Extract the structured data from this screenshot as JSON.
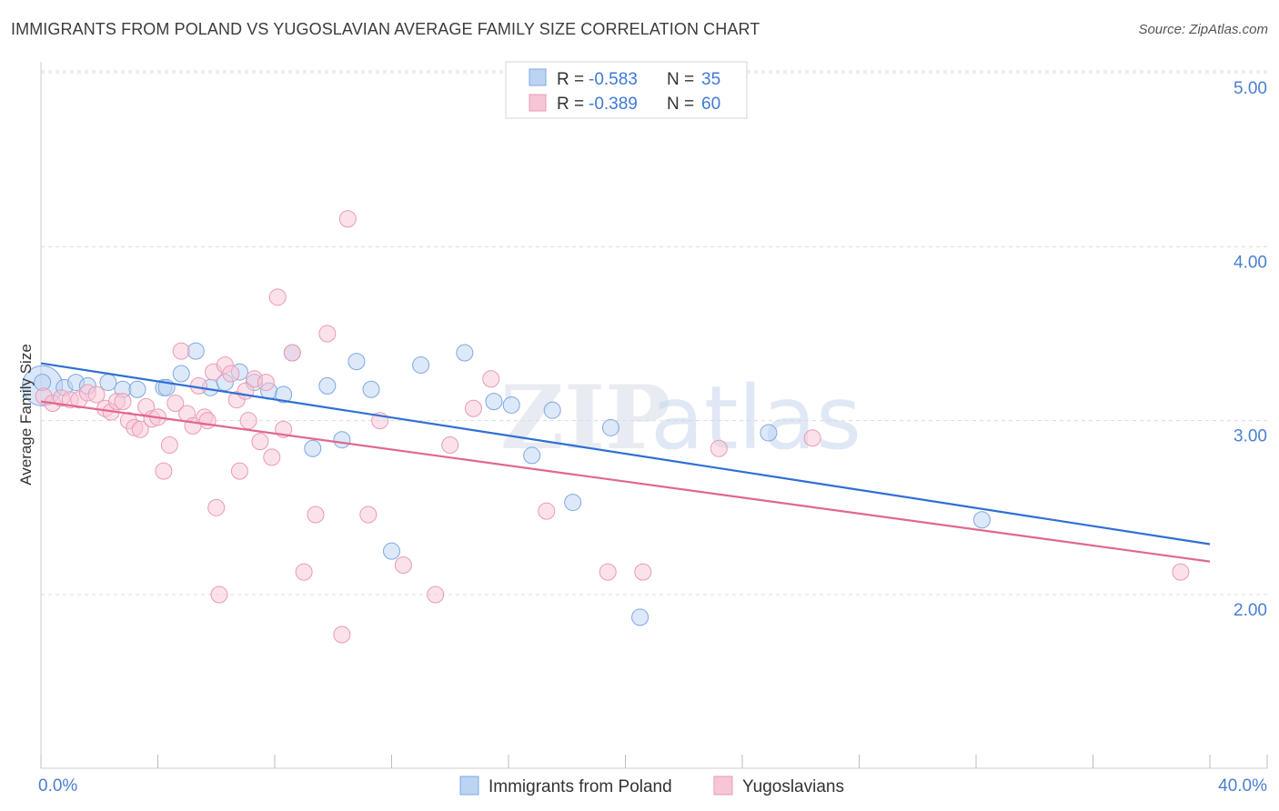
{
  "header": {
    "title": "IMMIGRANTS FROM POLAND VS YUGOSLAVIAN AVERAGE FAMILY SIZE CORRELATION CHART",
    "source": "Source: ZipAtlas.com"
  },
  "watermark": {
    "part1": "ZIP",
    "part2": "atlas"
  },
  "legend_top": {
    "rows": [
      {
        "r_label": "R = ",
        "r_value": "-0.583",
        "n_label": "N = ",
        "n_value": "35"
      },
      {
        "r_label": "R = ",
        "r_value": "-0.389",
        "n_label": "N = ",
        "n_value": "60"
      }
    ]
  },
  "legend_bottom": {
    "items": [
      "Immigrants from Poland",
      "Yugoslavians"
    ]
  },
  "colors": {
    "blue_fill": "#bcd4f3",
    "blue_stroke": "#7ea8e0",
    "blue_line": "#2f6fd3",
    "pink_fill": "#f7c6d6",
    "pink_stroke": "#ea9ab5",
    "pink_line": "#e0678f",
    "grid": "#dcdcdc",
    "tick_text": "#4a7fd0"
  },
  "chart_data": {
    "type": "scatter",
    "title": "IMMIGRANTS FROM POLAND VS YUGOSLAVIAN AVERAGE FAMILY SIZE CORRELATION CHART",
    "xlabel": "",
    "ylabel": "Average Family Size",
    "xlim": [
      0,
      40
    ],
    "ylim": [
      1.0,
      5.1
    ],
    "x_tick_labels": [
      "0.0%",
      "40.0%"
    ],
    "y_ticks": [
      2.0,
      3.0,
      4.0,
      5.0
    ],
    "y_tick_labels": [
      "2.00",
      "3.00",
      "4.00",
      "5.00"
    ],
    "grid": "horizontal dashed",
    "legend_placement": "top-center",
    "series": [
      {
        "name": "Immigrants from Poland",
        "r": -0.583,
        "n": 35,
        "trend": {
          "x": [
            0,
            40
          ],
          "y": [
            3.33,
            2.29
          ]
        },
        "points": [
          [
            0.05,
            3.22
          ],
          [
            0.8,
            3.19
          ],
          [
            1.2,
            3.22
          ],
          [
            1.6,
            3.2
          ],
          [
            2.3,
            3.22
          ],
          [
            2.8,
            3.18
          ],
          [
            3.3,
            3.18
          ],
          [
            4.2,
            3.19
          ],
          [
            4.3,
            3.19
          ],
          [
            4.8,
            3.27
          ],
          [
            5.3,
            3.4
          ],
          [
            5.8,
            3.19
          ],
          [
            6.3,
            3.22
          ],
          [
            6.8,
            3.28
          ],
          [
            7.3,
            3.22
          ],
          [
            7.8,
            3.17
          ],
          [
            8.3,
            3.15
          ],
          [
            8.6,
            3.39
          ],
          [
            9.3,
            2.84
          ],
          [
            9.8,
            3.2
          ],
          [
            10.3,
            2.89
          ],
          [
            10.8,
            3.34
          ],
          [
            11.3,
            3.18
          ],
          [
            12.0,
            2.25
          ],
          [
            13.0,
            3.32
          ],
          [
            14.5,
            3.39
          ],
          [
            15.5,
            3.11
          ],
          [
            16.1,
            3.09
          ],
          [
            16.8,
            2.8
          ],
          [
            17.5,
            3.06
          ],
          [
            18.2,
            2.53
          ],
          [
            19.5,
            2.96
          ],
          [
            20.5,
            1.87
          ],
          [
            24.9,
            2.93
          ],
          [
            32.2,
            2.43
          ]
        ]
      },
      {
        "name": "Yugoslavians",
        "r": -0.389,
        "n": 60,
        "trend": {
          "x": [
            0,
            40
          ],
          "y": [
            3.11,
            2.19
          ]
        },
        "points": [
          [
            0.1,
            3.14
          ],
          [
            0.4,
            3.1
          ],
          [
            0.7,
            3.13
          ],
          [
            1.0,
            3.12
          ],
          [
            1.3,
            3.12
          ],
          [
            1.6,
            3.16
          ],
          [
            1.9,
            3.15
          ],
          [
            2.2,
            3.07
          ],
          [
            2.4,
            3.05
          ],
          [
            2.6,
            3.11
          ],
          [
            2.8,
            3.11
          ],
          [
            3.0,
            3.0
          ],
          [
            3.2,
            2.96
          ],
          [
            3.4,
            2.95
          ],
          [
            3.6,
            3.08
          ],
          [
            3.8,
            3.01
          ],
          [
            4.0,
            3.02
          ],
          [
            4.2,
            2.71
          ],
          [
            4.4,
            2.86
          ],
          [
            4.6,
            3.1
          ],
          [
            4.8,
            3.4
          ],
          [
            5.0,
            3.04
          ],
          [
            5.2,
            2.97
          ],
          [
            5.4,
            3.2
          ],
          [
            5.6,
            3.02
          ],
          [
            5.7,
            3.0
          ],
          [
            5.9,
            3.28
          ],
          [
            6.0,
            2.5
          ],
          [
            6.1,
            2.0
          ],
          [
            6.3,
            3.32
          ],
          [
            6.5,
            3.27
          ],
          [
            6.7,
            3.12
          ],
          [
            6.8,
            2.71
          ],
          [
            7.0,
            3.17
          ],
          [
            7.1,
            3.0
          ],
          [
            7.3,
            3.24
          ],
          [
            7.5,
            2.88
          ],
          [
            7.7,
            3.22
          ],
          [
            7.9,
            2.79
          ],
          [
            8.1,
            3.71
          ],
          [
            8.3,
            2.95
          ],
          [
            8.6,
            3.39
          ],
          [
            9.0,
            2.13
          ],
          [
            9.4,
            2.46
          ],
          [
            9.8,
            3.5
          ],
          [
            10.3,
            1.77
          ],
          [
            10.5,
            4.16
          ],
          [
            11.2,
            2.46
          ],
          [
            11.6,
            3.0
          ],
          [
            12.4,
            2.17
          ],
          [
            13.5,
            2.0
          ],
          [
            14.0,
            2.86
          ],
          [
            14.8,
            3.07
          ],
          [
            15.4,
            3.24
          ],
          [
            17.3,
            2.48
          ],
          [
            19.4,
            2.13
          ],
          [
            20.6,
            2.13
          ],
          [
            23.2,
            2.84
          ],
          [
            26.4,
            2.9
          ],
          [
            39.0,
            2.13
          ]
        ]
      }
    ]
  }
}
